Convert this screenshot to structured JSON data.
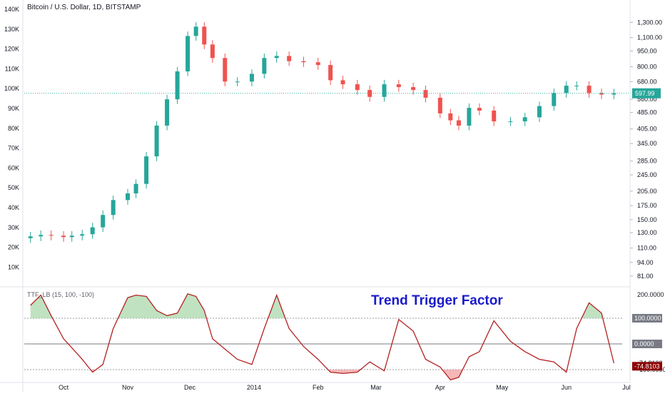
{
  "header": {
    "symbol_title": "Bitcoin / U.S. Dollar, 1D, BITSTAMP",
    "indicator_title": "TTF_LB (15, 100, -100)",
    "overlay_title": "Trend Trigger Factor"
  },
  "left_axis": [
    "140K",
    "130K",
    "120K",
    "110K",
    "100K",
    "90K",
    "80K",
    "70K",
    "60K",
    "50K",
    "40K",
    "30K",
    "20K",
    "10K"
  ],
  "right_axis": [
    "1,300.00",
    "1,100.00",
    "950.00",
    "800.00",
    "680.00",
    "560.00",
    "485.00",
    "405.00",
    "345.00",
    "285.00",
    "245.00",
    "205.00",
    "175.00",
    "150.00",
    "130.00",
    "110.00",
    "94.00",
    "81.00"
  ],
  "indicator_axis": [
    "200.0000",
    "-74.8103",
    "-100.0000"
  ],
  "x_axis": [
    "Oct",
    "Nov",
    "Dec",
    "2014",
    "Feb",
    "Mar",
    "Apr",
    "May",
    "Jun",
    "Jul"
  ],
  "price_label": "597.99",
  "indicator_labels": {
    "upper": "100.0000",
    "zero": "0.0000",
    "last": "-74.8103"
  },
  "colors": {
    "up": "#26a69a",
    "down": "#ef5350",
    "ttf_line": "#b22222",
    "fill_up": "#a5d6a7",
    "fill_down": "#ef9a9a",
    "price_badge": "#26a69a",
    "last_badge": "#8b0000",
    "level_badge": "#787b86",
    "overlay": "#1a1acb"
  },
  "chart_data": [
    {
      "type": "candlestick",
      "title": "Bitcoin / U.S. Dollar, 1D, BITSTAMP",
      "y_scale": "log",
      "ylim": [
        76,
        1420
      ],
      "x": [
        "2013-09-15",
        "2013-09-20",
        "2013-09-25",
        "2013-10-01",
        "2013-10-05",
        "2013-10-10",
        "2013-10-15",
        "2013-10-20",
        "2013-10-25",
        "2013-11-01",
        "2013-11-05",
        "2013-11-10",
        "2013-11-15",
        "2013-11-20",
        "2013-11-25",
        "2013-11-30",
        "2013-12-04",
        "2013-12-08",
        "2013-12-12",
        "2013-12-18",
        "2013-12-24",
        "2013-12-31",
        "2014-01-06",
        "2014-01-12",
        "2014-01-18",
        "2014-01-25",
        "2014-02-01",
        "2014-02-07",
        "2014-02-13",
        "2014-02-20",
        "2014-02-26",
        "2014-03-05",
        "2014-03-12",
        "2014-03-19",
        "2014-03-25",
        "2014-04-01",
        "2014-04-06",
        "2014-04-10",
        "2014-04-15",
        "2014-04-20",
        "2014-04-27",
        "2014-05-05",
        "2014-05-12",
        "2014-05-19",
        "2014-05-26",
        "2014-06-01",
        "2014-06-06",
        "2014-06-12",
        "2014-06-18",
        "2014-06-24"
      ],
      "close": [
        125,
        127,
        126,
        124,
        126,
        128,
        138,
        158,
        186,
        200,
        222,
        300,
        420,
        560,
        760,
        1120,
        1240,
        1020,
        880,
        680,
        680,
        740,
        880,
        900,
        850,
        840,
        815,
        690,
        660,
        620,
        575,
        660,
        640,
        620,
        570,
        480,
        445,
        420,
        510,
        495,
        440,
        440,
        460,
        520,
        600,
        650,
        650,
        600,
        590,
        598
      ]
    },
    {
      "type": "line",
      "title": "TTF_LB (15, 100, -100)",
      "ylim": [
        -100,
        200
      ],
      "levels": [
        100,
        0,
        -100
      ],
      "x": [
        "2013-09-15",
        "2013-09-20",
        "2013-09-25",
        "2013-10-01",
        "2013-10-05",
        "2013-10-10",
        "2013-10-15",
        "2013-10-20",
        "2013-10-25",
        "2013-11-01",
        "2013-11-05",
        "2013-11-10",
        "2013-11-15",
        "2013-11-20",
        "2013-11-25",
        "2013-11-30",
        "2013-12-04",
        "2013-12-08",
        "2013-12-12",
        "2013-12-18",
        "2013-12-24",
        "2013-12-31",
        "2014-01-06",
        "2014-01-12",
        "2014-01-18",
        "2014-01-25",
        "2014-02-01",
        "2014-02-07",
        "2014-02-13",
        "2014-02-20",
        "2014-02-26",
        "2014-03-05",
        "2014-03-12",
        "2014-03-19",
        "2014-03-25",
        "2014-04-01",
        "2014-04-06",
        "2014-04-10",
        "2014-04-15",
        "2014-04-20",
        "2014-04-27",
        "2014-05-05",
        "2014-05-12",
        "2014-05-19",
        "2014-05-26",
        "2014-06-01",
        "2014-06-06",
        "2014-06-12",
        "2014-06-18",
        "2014-06-24"
      ],
      "values": [
        150,
        190,
        110,
        20,
        -15,
        -60,
        -110,
        -80,
        60,
        180,
        190,
        185,
        130,
        110,
        120,
        195,
        185,
        130,
        20,
        -20,
        -60,
        -80,
        60,
        190,
        60,
        -10,
        -60,
        -110,
        -115,
        -110,
        -70,
        -105,
        95,
        50,
        -60,
        -90,
        -140,
        -130,
        -50,
        -30,
        90,
        10,
        -30,
        -60,
        -70,
        -110,
        60,
        160,
        120,
        -75
      ]
    }
  ]
}
